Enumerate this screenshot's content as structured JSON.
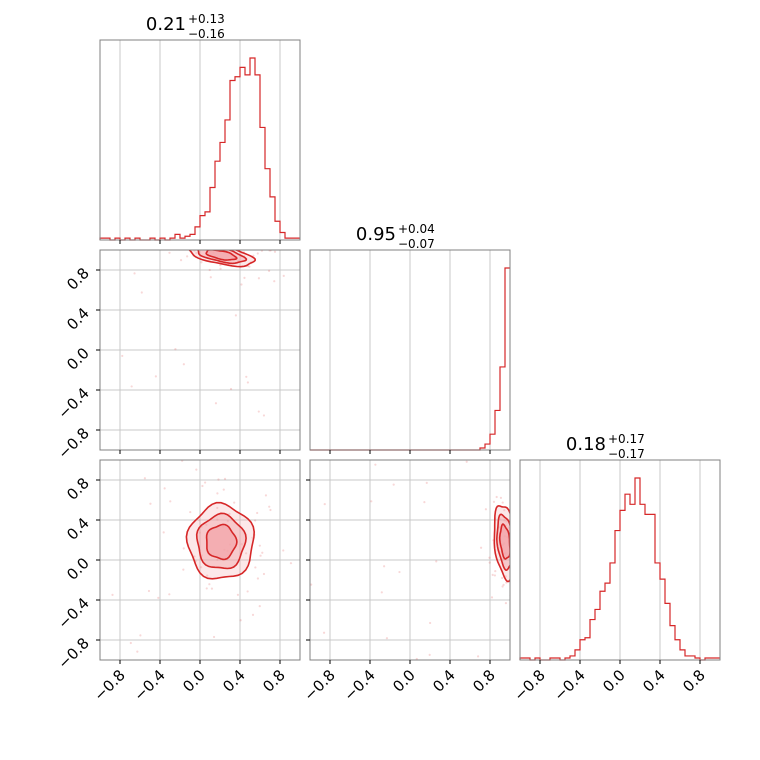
{
  "chart_data": {
    "type": "corner",
    "color": "#d62728",
    "fill_color": "#f2a3a7",
    "grid": true,
    "parameters": [
      {
        "range": [
          -1.0,
          1.0
        ],
        "title": {
          "value": "0.21",
          "plus": "+0.13",
          "minus": "−0.16"
        },
        "hist": [
          0.01,
          0.01,
          0.0,
          0.01,
          0.0,
          0.01,
          0.0,
          0.01,
          0.0,
          0.0,
          0.01,
          0.0,
          0.01,
          0.0,
          0.01,
          0.03,
          0.01,
          0.02,
          0.03,
          0.07,
          0.13,
          0.15,
          0.28,
          0.42,
          0.52,
          0.64,
          0.85,
          0.87,
          0.92,
          0.88,
          0.97,
          0.88,
          0.6,
          0.38,
          0.23,
          0.1,
          0.04,
          0.01,
          0.01,
          0.01
        ]
      },
      {
        "range": [
          -1.0,
          1.0
        ],
        "title": {
          "value": "0.95",
          "plus": "+0.04",
          "minus": "−0.07"
        },
        "hist": [
          0,
          0,
          0,
          0,
          0,
          0,
          0,
          0,
          0,
          0,
          0,
          0,
          0,
          0,
          0,
          0,
          0,
          0,
          0,
          0,
          0,
          0,
          0,
          0,
          0,
          0,
          0,
          0,
          0,
          0,
          0,
          0,
          0,
          0,
          0.01,
          0.03,
          0.08,
          0.2,
          0.42,
          0.92
        ]
      },
      {
        "range": [
          -1.0,
          1.0
        ],
        "title": {
          "value": "0.18",
          "plus": "+0.17",
          "minus": "−0.17"
        },
        "hist": [
          0.01,
          0.01,
          0.0,
          0.01,
          0.0,
          0.0,
          0.01,
          0.01,
          0.0,
          0.01,
          0.02,
          0.05,
          0.1,
          0.11,
          0.2,
          0.25,
          0.34,
          0.38,
          0.48,
          0.64,
          0.74,
          0.82,
          0.77,
          0.9,
          0.77,
          0.72,
          0.72,
          0.48,
          0.4,
          0.28,
          0.17,
          0.1,
          0.05,
          0.02,
          0.02,
          0.01,
          0.0,
          0.01,
          0.01,
          0.01
        ]
      }
    ],
    "panels": [
      {
        "row": 1,
        "col": 0,
        "center": [
          0.21,
          0.95
        ],
        "sigma": [
          0.15,
          0.05
        ],
        "corr": -0.55
      },
      {
        "row": 2,
        "col": 0,
        "center": [
          0.21,
          0.18
        ],
        "sigma": [
          0.15,
          0.17
        ],
        "corr": 0.0
      },
      {
        "row": 2,
        "col": 1,
        "center": [
          0.95,
          0.18
        ],
        "sigma": [
          0.05,
          0.17
        ],
        "corr": -0.3
      }
    ],
    "ticks": [
      -0.8,
      -0.4,
      0.0,
      0.4,
      0.8
    ],
    "tick_labels": [
      "−0.8",
      "−0.4",
      "0.0",
      "0.4",
      "0.8"
    ],
    "contour_levels": [
      1.0,
      1.6,
      2.2
    ]
  }
}
